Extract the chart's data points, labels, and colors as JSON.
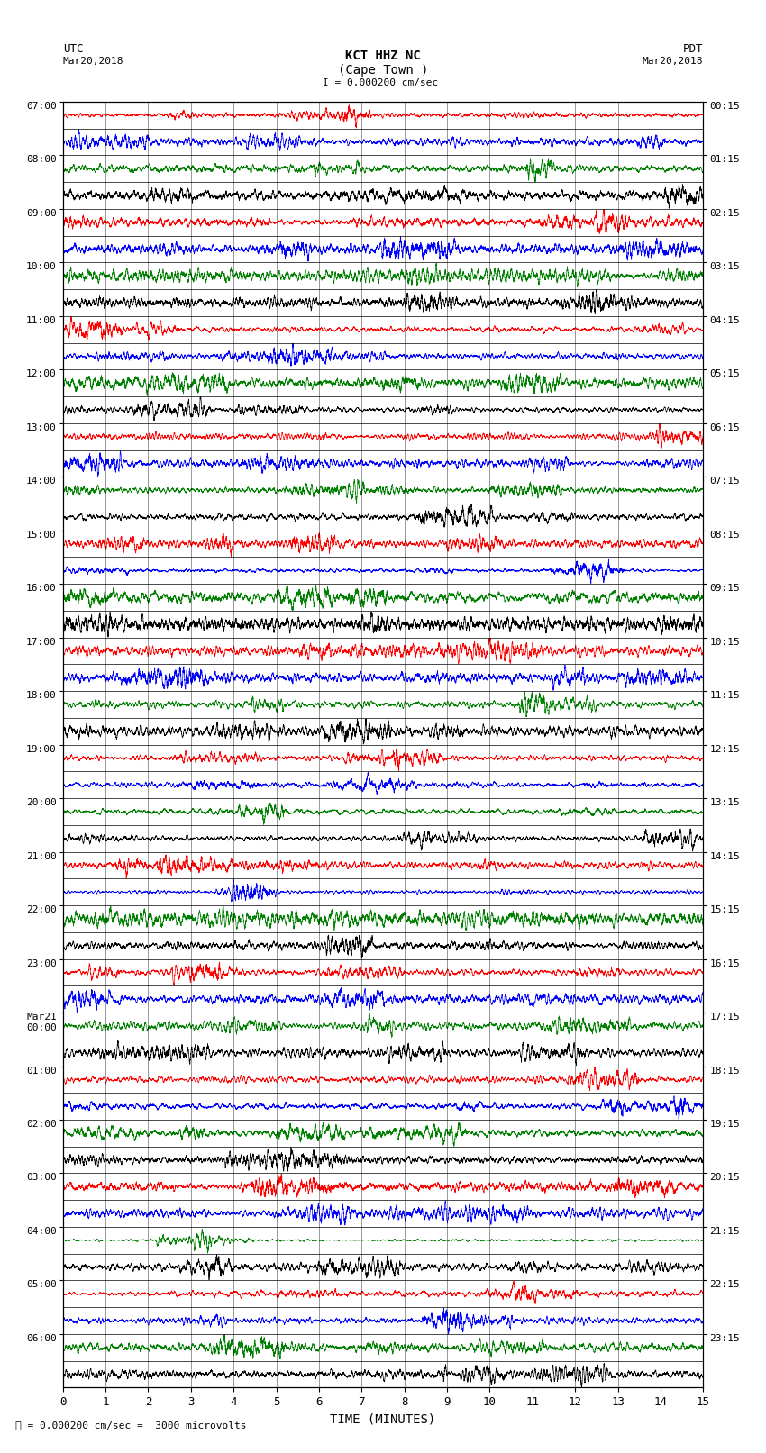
{
  "title_line1": "KCT HHZ NC",
  "title_line2": "(Cape Town )",
  "title_scale": "I = 0.000200 cm/sec",
  "label_left_top": "UTC",
  "label_left_date": "Mar20,2018",
  "label_right_top": "PDT",
  "label_right_date": "Mar20,2018",
  "xlabel": "TIME (MINUTES)",
  "bottom_note": "= 0.000200 cm/sec =  3000 microvolts",
  "utc_labels": [
    "07:00",
    "08:00",
    "09:00",
    "10:00",
    "11:00",
    "12:00",
    "13:00",
    "14:00",
    "15:00",
    "16:00",
    "17:00",
    "18:00",
    "19:00",
    "20:00",
    "21:00",
    "22:00",
    "23:00",
    "Mar21\n00:00",
    "01:00",
    "02:00",
    "03:00",
    "04:00",
    "05:00",
    "06:00"
  ],
  "pdt_labels": [
    "00:15",
    "01:15",
    "02:15",
    "03:15",
    "04:15",
    "05:15",
    "06:15",
    "07:15",
    "08:15",
    "09:15",
    "10:15",
    "11:15",
    "12:15",
    "13:15",
    "14:15",
    "15:15",
    "16:15",
    "17:15",
    "18:15",
    "19:15",
    "20:15",
    "21:15",
    "22:15",
    "23:15"
  ],
  "n_rows": 48,
  "xmin": 0,
  "xmax": 15,
  "colors_cycle": [
    "red",
    "blue",
    "green",
    "black"
  ],
  "bg_color": "white",
  "seed": 42
}
